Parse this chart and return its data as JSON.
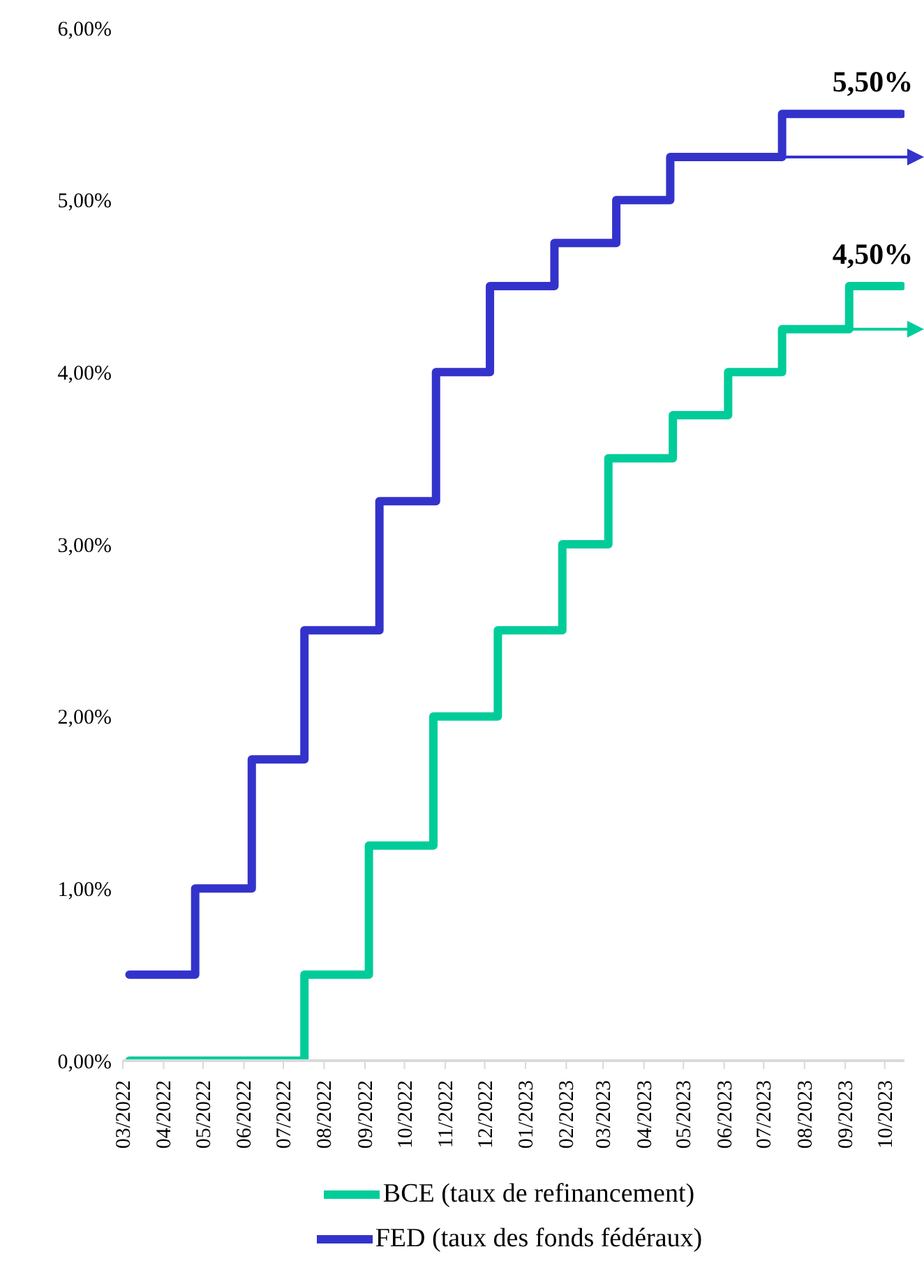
{
  "chart_data": {
    "type": "step",
    "xlim": [
      "2022-03-01",
      "2023-10-16"
    ],
    "xticks": [
      {
        "value": "2022-03",
        "label": "03/2022"
      },
      {
        "value": "2022-04",
        "label": "04/2022"
      },
      {
        "value": "2022-05",
        "label": "05/2022"
      },
      {
        "value": "2022-06",
        "label": "06/2022"
      },
      {
        "value": "2022-07",
        "label": "07/2022"
      },
      {
        "value": "2022-08",
        "label": "08/2022"
      },
      {
        "value": "2022-09",
        "label": "09/2022"
      },
      {
        "value": "2022-10",
        "label": "10/2022"
      },
      {
        "value": "2022-11",
        "label": "11/2022"
      },
      {
        "value": "2022-12",
        "label": "12/2022"
      },
      {
        "value": "2023-01",
        "label": "01/2023"
      },
      {
        "value": "2023-02",
        "label": "02/2023"
      },
      {
        "value": "2023-03",
        "label": "03/2023"
      },
      {
        "value": "2023-04",
        "label": "04/2023"
      },
      {
        "value": "2023-05",
        "label": "05/2023"
      },
      {
        "value": "2023-06",
        "label": "06/2023"
      },
      {
        "value": "2023-07",
        "label": "07/2023"
      },
      {
        "value": "2023-08",
        "label": "08/2023"
      },
      {
        "value": "2023-09",
        "label": "09/2023"
      },
      {
        "value": "2023-10",
        "label": "10/2023"
      }
    ],
    "ylim": [
      0,
      6
    ],
    "yticks": [
      {
        "value": 0,
        "label": "0,00%"
      },
      {
        "value": 1,
        "label": "1,00%"
      },
      {
        "value": 2,
        "label": "2,00%"
      },
      {
        "value": 3,
        "label": "3,00%"
      },
      {
        "value": 4,
        "label": "4,00%"
      },
      {
        "value": 5,
        "label": "5,00%"
      },
      {
        "value": 6,
        "label": "6,00%"
      }
    ],
    "legend": "bottom",
    "series": [
      {
        "name": "BCE (taux de refinancement)",
        "color": "#00cc99",
        "x": [
          "2022-03-06",
          "2022-07-17",
          "2022-09-04",
          "2022-10-23",
          "2022-12-11",
          "2023-01-29",
          "2023-03-05",
          "2023-04-23",
          "2023-06-04",
          "2023-07-15",
          "2023-09-04",
          "2023-10-14"
        ],
        "values": [
          0,
          0.5,
          1.25,
          2,
          2.5,
          3,
          3.5,
          3.75,
          4,
          4.25,
          4.5,
          4.5
        ]
      },
      {
        "name": "FED (taux des fonds fédéraux)",
        "color": "#3333cc",
        "x": [
          "2022-03-06",
          "2022-04-25",
          "2022-06-07",
          "2022-07-17",
          "2022-09-12",
          "2022-10-25",
          "2022-12-05",
          "2023-01-23",
          "2023-03-11",
          "2023-04-21",
          "2023-07-15",
          "2023-10-14"
        ],
        "values": [
          0.5,
          1,
          1.75,
          2.5,
          3.25,
          4,
          4.5,
          4.75,
          5,
          5.25,
          5.5,
          5.5
        ]
      }
    ],
    "annotations": [
      {
        "text": "5,50%",
        "x": "2023-10-14",
        "y": 5.5
      },
      {
        "text": "4,50%",
        "x": "2023-10-14",
        "y": 4.5
      }
    ]
  }
}
